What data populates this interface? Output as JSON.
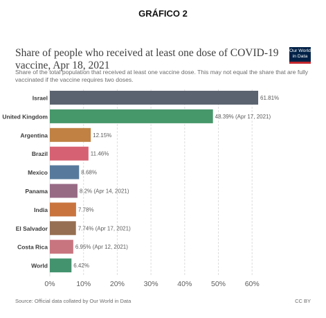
{
  "page": {
    "heading": "GRÁFICO 2"
  },
  "header": {
    "title": "Share of people who received at least one dose of COVID-19 vaccine, Apr 18, 2021",
    "subtitle": "Share of the total population that received at least one vaccine dose. This may not equal the share that are fully vaccinated if the vaccine requires two doses.",
    "logo_line1": "Our World",
    "logo_line2": "in Data"
  },
  "footer": {
    "source": "Source: Official data collated by Our World in Data",
    "license": "CC BY"
  },
  "colors": {
    "gridline": "#dddddd",
    "label_text": "#3a3a3a",
    "value_text": "#5b5b5b"
  },
  "chart_data": {
    "type": "bar",
    "orientation": "horizontal",
    "title": "Share of people who received at least one dose of COVID-19 vaccine, Apr 18, 2021",
    "xlim": [
      0,
      62
    ],
    "x_ticks": [
      "0%",
      "10%",
      "20%",
      "30%",
      "40%",
      "50%",
      "60%"
    ],
    "x_tick_values": [
      0,
      10,
      20,
      30,
      40,
      50,
      60
    ],
    "grid": true,
    "categories": [
      "Israel",
      "United Kingdom",
      "Argentina",
      "Brazil",
      "Mexico",
      "Panama",
      "India",
      "El Salvador",
      "Costa Rica",
      "World"
    ],
    "values": [
      61.81,
      48.39,
      12.15,
      11.46,
      8.68,
      8.2,
      7.78,
      7.74,
      6.95,
      6.42
    ],
    "value_labels": [
      "61.81%",
      "48.39% (Apr 17, 2021)",
      "12.15%",
      "11.46%",
      "8.68%",
      "8.2% (Apr 14, 2021)",
      "7.78%",
      "7.74% (Apr 17, 2021)",
      "6.95% (Apr 12, 2021)",
      "6.42%"
    ],
    "bar_colors": [
      "#5b6370",
      "#46976a",
      "#c08143",
      "#d66172",
      "#577a9c",
      "#986b85",
      "#c9743f",
      "#966f52",
      "#c97580",
      "#44936f"
    ]
  }
}
